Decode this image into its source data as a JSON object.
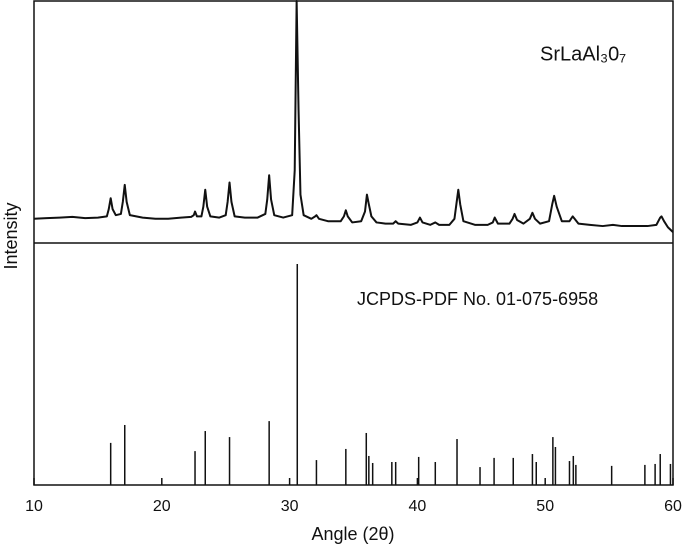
{
  "chart_data": [
    {
      "type": "line",
      "annotation": "SrLaAl₃0₇",
      "ylabel": "Intensity",
      "color": "#111111",
      "xlim": [
        10,
        60
      ],
      "ylim": [
        0,
        100
      ],
      "x": [
        10,
        11,
        12,
        13,
        14,
        15,
        15.7,
        15.85,
        16.0,
        16.15,
        16.4,
        16.8,
        16.95,
        17.1,
        17.25,
        17.5,
        18.5,
        19.5,
        20.5,
        21.5,
        22.3,
        22.5,
        22.6,
        22.75,
        23.1,
        23.25,
        23.4,
        23.55,
        23.8,
        24.5,
        25.0,
        25.15,
        25.3,
        25.45,
        25.7,
        26.5,
        27.5,
        28.1,
        28.25,
        28.4,
        28.55,
        28.8,
        29.5,
        30.2,
        30.4,
        30.55,
        30.7,
        30.85,
        31.1,
        31.7,
        32.0,
        32.1,
        32.3,
        33,
        34.0,
        34.25,
        34.4,
        34.55,
        34.9,
        35.6,
        35.9,
        36.05,
        36.2,
        36.4,
        36.8,
        37.5,
        38.1,
        38.3,
        38.5,
        39.5,
        40.0,
        40.2,
        40.4,
        41,
        41.4,
        41.7,
        42.5,
        42.9,
        43.1,
        43.2,
        43.35,
        43.6,
        44.5,
        45.5,
        45.9,
        46.05,
        46.3,
        47.2,
        47.45,
        47.6,
        47.8,
        48.3,
        48.8,
        49.0,
        49.2,
        49.6,
        50.3,
        50.55,
        50.7,
        50.9,
        51.3,
        51.9,
        52.15,
        52.3,
        52.6,
        53.5,
        54.5,
        55.3,
        56,
        57,
        58,
        58.7,
        59.0,
        59.1,
        59.3,
        59.6,
        60
      ],
      "values": [
        10,
        10.3,
        10.5,
        10.8,
        10.3,
        10.5,
        11,
        14,
        18.5,
        14,
        11.5,
        12,
        17,
        24,
        17,
        11.5,
        10.5,
        10,
        10,
        10.5,
        10.8,
        11.5,
        13,
        11,
        11,
        15,
        22,
        15,
        11,
        10.5,
        11.5,
        17,
        25,
        17,
        11,
        10.5,
        10.5,
        12,
        18,
        28,
        18,
        11.5,
        10.5,
        11.5,
        30,
        100,
        55,
        20,
        11.5,
        10,
        11,
        11.5,
        10,
        9,
        9,
        11,
        13.5,
        11,
        8.5,
        9,
        13,
        20,
        16,
        11,
        8.5,
        8,
        8,
        9,
        8,
        7.5,
        8.5,
        10.5,
        8.5,
        7.5,
        8.5,
        7.5,
        7.5,
        10,
        18,
        22,
        16,
        9,
        7.5,
        7.5,
        8.5,
        10.5,
        8,
        8,
        10,
        12,
        9.5,
        8,
        10,
        12.5,
        10,
        8,
        9,
        16,
        19.5,
        15,
        9,
        9,
        11,
        10,
        8,
        7.5,
        7,
        7.5,
        7,
        7,
        7,
        7.5,
        10.5,
        11,
        9,
        6.5,
        4.5
      ]
    },
    {
      "type": "stem",
      "annotation": "JCPDS-PDF No. 01-075-6958",
      "xlabel": "Angle (2θ)",
      "color": "#111111",
      "xlim": [
        10,
        60
      ],
      "ylim": [
        0,
        100
      ],
      "xticks": [
        10,
        20,
        30,
        40,
        50,
        60
      ],
      "x": [
        16.0,
        17.1,
        22.6,
        23.4,
        25.3,
        28.4,
        30.6,
        32.1,
        34.4,
        36.0,
        36.2,
        36.5,
        38.0,
        38.3,
        40.1,
        41.4,
        43.1,
        44.9,
        46.0,
        47.5,
        49.0,
        49.3,
        50.6,
        50.8,
        51.9,
        52.2,
        52.4,
        55.2,
        57.8,
        58.6,
        59.0,
        59.8
      ],
      "values": [
        17.4,
        24.8,
        14,
        22.3,
        19.8,
        26.4,
        91.3,
        10.3,
        14.9,
        21.5,
        12,
        9.1,
        9.5,
        9.5,
        11.6,
        9.5,
        19,
        7.4,
        11.2,
        11.2,
        12.8,
        9.5,
        19.8,
        15.7,
        9.9,
        12,
        8.3,
        7.9,
        8.3,
        8.7,
        12.8,
        8.7
      ]
    }
  ]
}
